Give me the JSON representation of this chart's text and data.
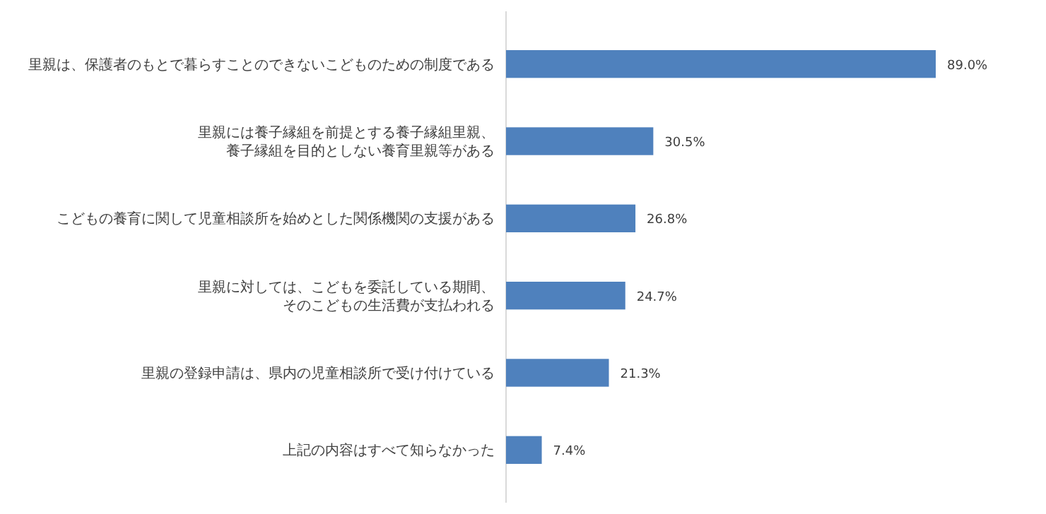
{
  "chart_data": {
    "type": "bar",
    "orientation": "horizontal",
    "categories": [
      "里親は、保護者のもとで暮らすことのできないこどものための制度である",
      "里親には養子縁組を前提とする養子縁組里親、養子縁組を目的としない養育里親等がある",
      "こどもの養育に関して児童相談所を始めとした関係機関の支援がある",
      "里親に対しては、こどもを委託している期間、そのこどもの生活費が支払われる",
      "里親の登録申請は、県内の児童相談所で受け付けている",
      "上記の内容はすべて知らなかった"
    ],
    "values": [
      89.0,
      30.5,
      26.8,
      24.7,
      21.3,
      7.4
    ],
    "value_labels": [
      "89.0%",
      "30.5%",
      "26.8%",
      "24.7%",
      "21.3%",
      "7.4%"
    ],
    "color": "#4f81bd"
  }
}
